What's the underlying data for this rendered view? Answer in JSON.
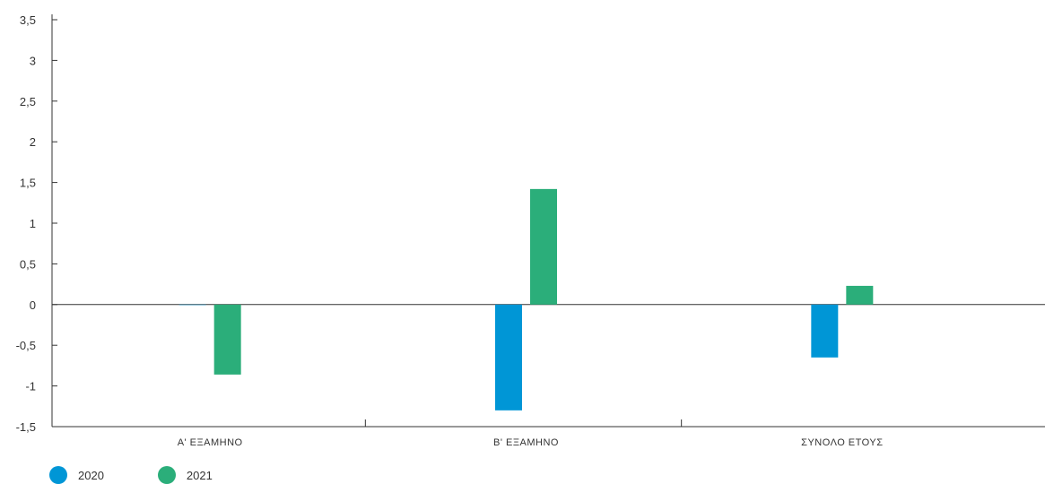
{
  "chart_data": {
    "type": "bar",
    "title": "",
    "xlabel": "",
    "ylabel": "",
    "categories": [
      "Α' ΕΞΑΜΗΝΟ",
      "Β' ΕΞΑΜΗΝΟ",
      "ΣΥΝΟΛΟ ΕΤΟΥΣ"
    ],
    "series": [
      {
        "name": "2020",
        "color": "#0096D6",
        "values": [
          0,
          -1.3,
          -0.65
        ]
      },
      {
        "name": "2021",
        "color": "#2BAE7A",
        "values": [
          -0.86,
          1.42,
          0.23
        ]
      }
    ],
    "ylim": [
      -1.5,
      3.5
    ],
    "yticks": [
      3.5,
      3,
      2.5,
      2,
      1.5,
      1,
      0.5,
      0,
      -0.5,
      -1,
      -1.5
    ],
    "ytick_labels": [
      "3,5",
      "3",
      "2,5",
      "2",
      "1,5",
      "1",
      "0,5",
      "0",
      "-0,5",
      "-1",
      "-1,5"
    ],
    "grid": false,
    "legend_position": "bottom-left"
  }
}
